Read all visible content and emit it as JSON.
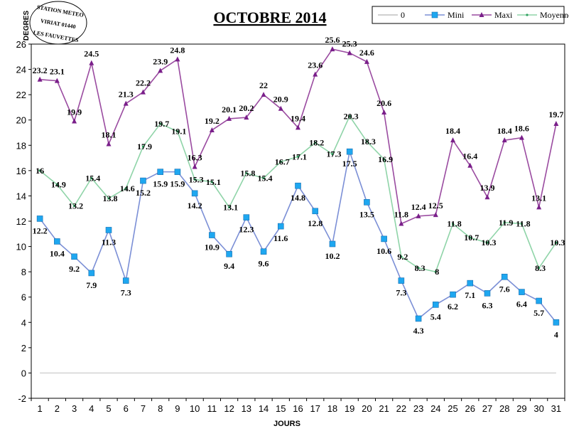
{
  "chart_data": {
    "type": "line",
    "title": "OCTOBRE 2014",
    "xlabel": "JOURS",
    "ylabel": "DEGRES",
    "ylim": [
      -2,
      26
    ],
    "yticks": [
      -2,
      0,
      2,
      4,
      6,
      8,
      10,
      12,
      14,
      16,
      18,
      20,
      22,
      24,
      26
    ],
    "x": [
      1,
      2,
      3,
      4,
      5,
      6,
      7,
      8,
      9,
      10,
      11,
      12,
      13,
      14,
      15,
      16,
      17,
      18,
      19,
      20,
      21,
      22,
      23,
      24,
      25,
      26,
      27,
      28,
      29,
      30,
      31
    ],
    "series": [
      {
        "name": "0",
        "color": "#c0c0c0",
        "marker": "none",
        "values": [
          0,
          0,
          0,
          0,
          0,
          0,
          0,
          0,
          0,
          0,
          0,
          0,
          0,
          0,
          0,
          0,
          0,
          0,
          0,
          0,
          0,
          0,
          0,
          0,
          0,
          0,
          0,
          0,
          0,
          0,
          0
        ]
      },
      {
        "name": "Mini",
        "color": "#7b8fd6",
        "marker": "square",
        "values": [
          12.2,
          10.4,
          9.2,
          7.9,
          11.3,
          7.3,
          15.2,
          15.9,
          15.9,
          14.2,
          10.9,
          9.4,
          12.3,
          9.6,
          11.6,
          14.8,
          12.8,
          10.2,
          17.5,
          13.5,
          10.6,
          7.3,
          4.3,
          5.4,
          6.2,
          7.1,
          6.3,
          7.6,
          6.4,
          5.7,
          4
        ]
      },
      {
        "name": "Maxi",
        "color": "#9a4ba0",
        "marker": "triangle",
        "values": [
          23.2,
          23.1,
          19.9,
          24.5,
          18.1,
          21.3,
          22.2,
          23.9,
          24.8,
          16.3,
          19.2,
          20.1,
          20.2,
          22,
          20.9,
          19.4,
          23.6,
          25.6,
          25.3,
          24.6,
          20.6,
          11.8,
          12.4,
          12.5,
          18.4,
          16.4,
          13.9,
          18.4,
          18.6,
          13.1,
          19.7
        ]
      },
      {
        "name": "Moyenne",
        "color": "#8fd4a8",
        "marker": "dot",
        "values": [
          16,
          14.9,
          13.2,
          15.4,
          13.8,
          14.6,
          17.9,
          19.7,
          19.1,
          15.3,
          15.1,
          13.1,
          15.8,
          15.4,
          16.7,
          17.1,
          18.2,
          17.3,
          20.3,
          18.3,
          16.9,
          9.2,
          8.3,
          8,
          11.8,
          10.7,
          10.3,
          11.9,
          11.8,
          8.3,
          10.3
        ]
      }
    ],
    "legend_position": "top-right",
    "grid": false
  },
  "stamp": {
    "line1": "STATION METEO",
    "line2": "VIRIAT 01440",
    "line3": "LES FAUVETTES"
  }
}
